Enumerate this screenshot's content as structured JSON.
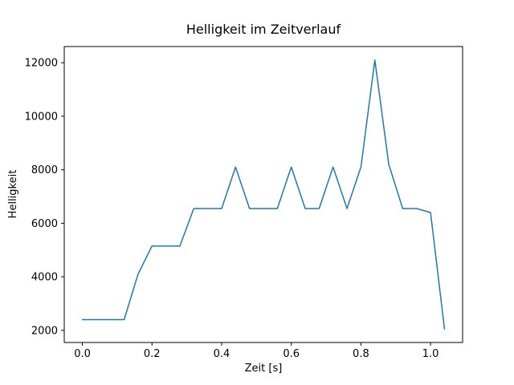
{
  "chart_data": {
    "type": "line",
    "title": "Helligkeit im Zeitverlauf",
    "xlabel": "Zeit [s]",
    "ylabel": "Helligkeit",
    "x": [
      0.0,
      0.04,
      0.08,
      0.12,
      0.16,
      0.2,
      0.24,
      0.28,
      0.32,
      0.36,
      0.4,
      0.44,
      0.48,
      0.52,
      0.56,
      0.6,
      0.64,
      0.68,
      0.72,
      0.76,
      0.8,
      0.84,
      0.88,
      0.92,
      0.96,
      1.0,
      1.04
    ],
    "y": [
      2400,
      2400,
      2400,
      2400,
      4100,
      5150,
      5150,
      5150,
      6550,
      6550,
      6550,
      8100,
      6550,
      6550,
      6550,
      8100,
      6550,
      6550,
      8100,
      6550,
      8100,
      12100,
      8200,
      6550,
      6550,
      6400,
      2050
    ],
    "xlim": [
      -0.052,
      1.092
    ],
    "ylim": [
      1545,
      12605
    ],
    "xticks": [
      0.0,
      0.2,
      0.4,
      0.6,
      0.8,
      1.0
    ],
    "xtick_labels": [
      "0.0",
      "0.2",
      "0.4",
      "0.6",
      "0.8",
      "1.0"
    ],
    "yticks": [
      2000,
      4000,
      6000,
      8000,
      10000,
      12000
    ],
    "ytick_labels": [
      "2000",
      "4000",
      "6000",
      "8000",
      "10000",
      "12000"
    ],
    "line_color": "#1f77b4",
    "axis_color": "#000000",
    "background": "#ffffff",
    "grid": false,
    "legend": null
  }
}
